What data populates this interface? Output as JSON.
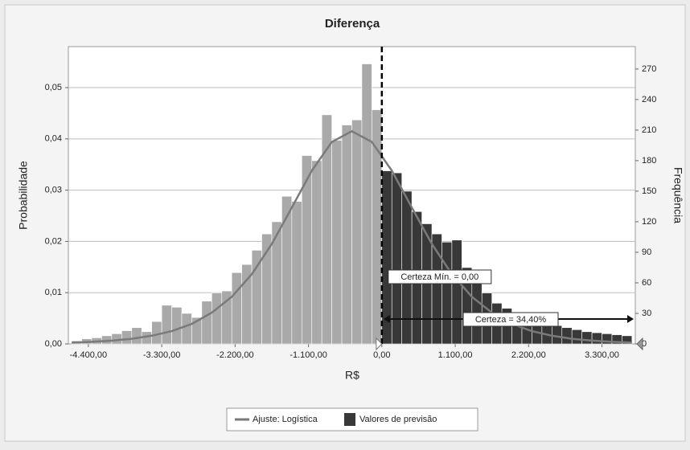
{
  "chart_data": {
    "type": "histogram",
    "title": "Diferença",
    "xlabel": "R$",
    "ylabel": "Probabilidade",
    "y2label": "Frequência",
    "bins": [
      -4650,
      -4500,
      -4350,
      -4200,
      -4050,
      -3900,
      -3750,
      -3600,
      -3450,
      -3300,
      -3150,
      -3000,
      -2850,
      -2700,
      -2550,
      -2400,
      -2250,
      -2100,
      -1950,
      -1800,
      -1650,
      -1500,
      -1350,
      -1200,
      -1050,
      -900,
      -750,
      -600,
      -450,
      -300,
      -150,
      0,
      150,
      300,
      450,
      600,
      750,
      900,
      1050,
      1200,
      1350,
      1500,
      1650,
      1800,
      1950,
      2100,
      2250,
      2400,
      2550,
      2700,
      2850,
      3000,
      3150,
      3300,
      3450,
      3600,
      3750
    ],
    "series": [
      {
        "name": "Valores de previsão",
        "color": "#383838",
        "axis": "y2",
        "values": [
          3,
          5,
          6,
          8,
          10,
          13,
          16,
          12,
          22,
          38,
          36,
          30,
          26,
          42,
          50,
          52,
          70,
          78,
          92,
          108,
          120,
          145,
          140,
          185,
          180,
          225,
          200,
          215,
          220,
          275,
          230,
          170,
          168,
          150,
          130,
          118,
          108,
          100,
          102,
          75,
          62,
          50,
          40,
          35,
          30,
          28,
          25,
          20,
          18,
          16,
          14,
          12,
          11,
          10,
          9,
          8
        ]
      }
    ],
    "outside_color": "#a9a9a9",
    "fit": {
      "name": "Ajuste: Logística",
      "color": "#7a7a7a",
      "x": [
        -4650,
        -4350,
        -4050,
        -3750,
        -3450,
        -3150,
        -2850,
        -2550,
        -2250,
        -1950,
        -1650,
        -1350,
        -1050,
        -750,
        -450,
        -150,
        150,
        450,
        750,
        1050,
        1350,
        1650,
        1950,
        2250,
        2550,
        2850,
        3150,
        3450,
        3750
      ],
      "values": [
        0.00026,
        0.00041,
        0.00065,
        0.001,
        0.0016,
        0.0025,
        0.0039,
        0.0061,
        0.0092,
        0.0136,
        0.0195,
        0.0266,
        0.0338,
        0.0394,
        0.0415,
        0.0394,
        0.0338,
        0.0266,
        0.0195,
        0.0136,
        0.0092,
        0.0061,
        0.0039,
        0.0025,
        0.0016,
        0.001,
        0.00065,
        0.00041,
        0.00026
      ]
    },
    "certainty": {
      "min": 0,
      "min_label": "Certeza Mín. = 0,00",
      "label": "Certeza = 34,40%"
    },
    "xlim": [
      -4700,
      3800
    ],
    "xticks": [
      {
        "value": -4400,
        "label": "-4.400,00"
      },
      {
        "value": -3300,
        "label": "-3.300,00"
      },
      {
        "value": -2200,
        "label": "-2.200,00"
      },
      {
        "value": -1100,
        "label": "-1.100,00"
      },
      {
        "value": 0,
        "label": "0,00"
      },
      {
        "value": 1100,
        "label": "1.100,00"
      },
      {
        "value": 2200,
        "label": "2.200,00"
      },
      {
        "value": 3300,
        "label": "3.300,00"
      }
    ],
    "ylim": [
      0,
      0.058
    ],
    "yticks": [
      {
        "value": 0,
        "label": "0,00"
      },
      {
        "value": 0.01,
        "label": "0,01"
      },
      {
        "value": 0.02,
        "label": "0,02"
      },
      {
        "value": 0.03,
        "label": "0,03"
      },
      {
        "value": 0.04,
        "label": "0,04"
      },
      {
        "value": 0.05,
        "label": "0,05"
      }
    ],
    "y2lim": [
      0,
      292
    ],
    "y2ticks": [
      0,
      30,
      60,
      90,
      120,
      150,
      180,
      210,
      240,
      270
    ],
    "grid": true
  }
}
